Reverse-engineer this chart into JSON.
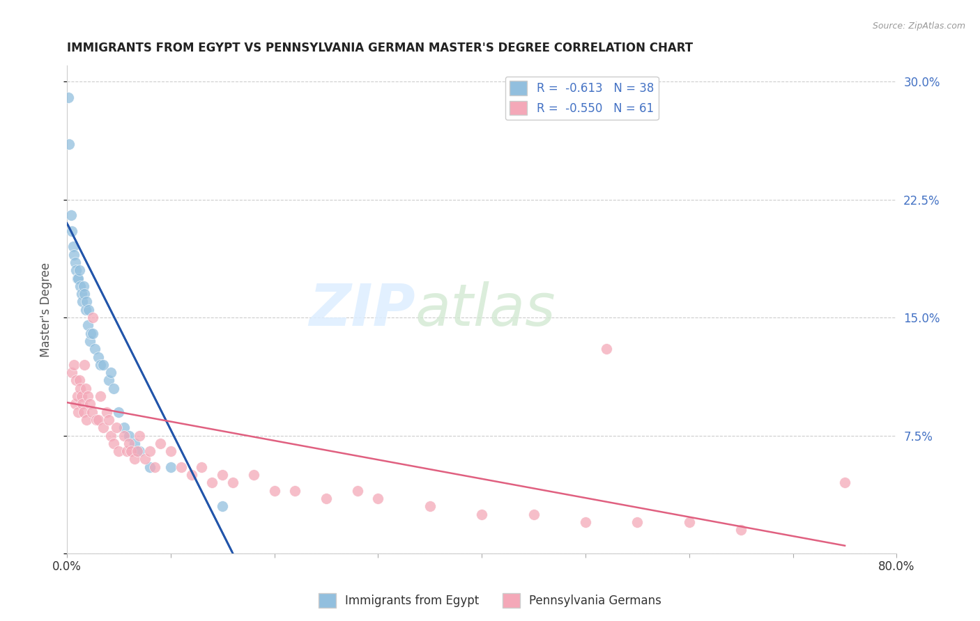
{
  "title": "IMMIGRANTS FROM EGYPT VS PENNSYLVANIA GERMAN MASTER'S DEGREE CORRELATION CHART",
  "source": "Source: ZipAtlas.com",
  "ylabel": "Master's Degree",
  "y_ticks": [
    0.0,
    0.075,
    0.15,
    0.225,
    0.3
  ],
  "y_tick_labels_right": [
    "",
    "7.5%",
    "15.0%",
    "22.5%",
    "30.0%"
  ],
  "x_ticks": [
    0.0,
    0.1,
    0.2,
    0.3,
    0.4,
    0.5,
    0.6,
    0.7,
    0.8
  ],
  "x_tick_labels": [
    "0.0%",
    "",
    "",
    "",
    "",
    "",
    "",
    "",
    "80.0%"
  ],
  "legend_r_blue": "R =  -0.613   N = 38",
  "legend_r_pink": "R =  -0.550   N = 61",
  "legend_label_blue": "Immigrants from Egypt",
  "legend_label_pink": "Pennsylvania Germans",
  "blue_color": "#92bfde",
  "pink_color": "#f4a8b8",
  "blue_line_color": "#2255aa",
  "pink_line_color": "#e06080",
  "blue_scatter_x": [
    0.001,
    0.002,
    0.004,
    0.005,
    0.006,
    0.007,
    0.008,
    0.009,
    0.01,
    0.011,
    0.012,
    0.013,
    0.014,
    0.015,
    0.016,
    0.017,
    0.018,
    0.019,
    0.02,
    0.021,
    0.022,
    0.023,
    0.025,
    0.027,
    0.03,
    0.032,
    0.035,
    0.04,
    0.042,
    0.045,
    0.05,
    0.055,
    0.06,
    0.065,
    0.07,
    0.08,
    0.1,
    0.15
  ],
  "blue_scatter_y": [
    0.29,
    0.26,
    0.215,
    0.205,
    0.195,
    0.19,
    0.185,
    0.18,
    0.175,
    0.175,
    0.18,
    0.17,
    0.165,
    0.16,
    0.17,
    0.165,
    0.155,
    0.16,
    0.145,
    0.155,
    0.135,
    0.14,
    0.14,
    0.13,
    0.125,
    0.12,
    0.12,
    0.11,
    0.115,
    0.105,
    0.09,
    0.08,
    0.075,
    0.07,
    0.065,
    0.055,
    0.055,
    0.03
  ],
  "pink_scatter_x": [
    0.005,
    0.007,
    0.008,
    0.009,
    0.01,
    0.011,
    0.012,
    0.013,
    0.014,
    0.015,
    0.016,
    0.017,
    0.018,
    0.019,
    0.02,
    0.022,
    0.024,
    0.025,
    0.028,
    0.03,
    0.032,
    0.035,
    0.038,
    0.04,
    0.042,
    0.045,
    0.048,
    0.05,
    0.055,
    0.058,
    0.06,
    0.062,
    0.065,
    0.068,
    0.07,
    0.075,
    0.08,
    0.085,
    0.09,
    0.1,
    0.11,
    0.12,
    0.13,
    0.14,
    0.15,
    0.16,
    0.18,
    0.2,
    0.22,
    0.25,
    0.28,
    0.3,
    0.35,
    0.4,
    0.45,
    0.5,
    0.55,
    0.6,
    0.65,
    0.75,
    0.52
  ],
  "pink_scatter_y": [
    0.115,
    0.12,
    0.095,
    0.11,
    0.1,
    0.09,
    0.11,
    0.105,
    0.1,
    0.095,
    0.09,
    0.12,
    0.105,
    0.085,
    0.1,
    0.095,
    0.09,
    0.15,
    0.085,
    0.085,
    0.1,
    0.08,
    0.09,
    0.085,
    0.075,
    0.07,
    0.08,
    0.065,
    0.075,
    0.065,
    0.07,
    0.065,
    0.06,
    0.065,
    0.075,
    0.06,
    0.065,
    0.055,
    0.07,
    0.065,
    0.055,
    0.05,
    0.055,
    0.045,
    0.05,
    0.045,
    0.05,
    0.04,
    0.04,
    0.035,
    0.04,
    0.035,
    0.03,
    0.025,
    0.025,
    0.02,
    0.02,
    0.02,
    0.015,
    0.045,
    0.13
  ],
  "xmin": 0.0,
  "xmax": 0.8,
  "ymin": 0.0,
  "ymax": 0.31,
  "background_color": "#ffffff",
  "grid_color": "#cccccc",
  "blue_line_x0": 0.0,
  "blue_line_x1": 0.16,
  "blue_line_y0": 0.21,
  "blue_line_y1": 0.0,
  "pink_line_x0": 0.0,
  "pink_line_x1": 0.75,
  "pink_line_y0": 0.096,
  "pink_line_y1": 0.005
}
